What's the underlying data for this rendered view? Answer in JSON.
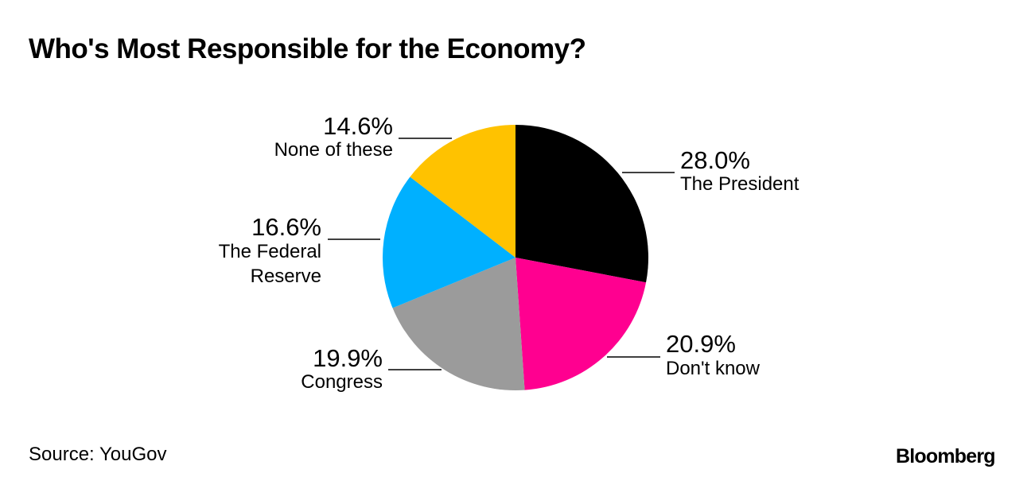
{
  "title": "Who's Most Responsible for the Economy?",
  "source": "Source: YouGov",
  "brand": "Bloomberg",
  "colors": {
    "the_president": "#000000",
    "dont_know": "#ff0090",
    "congress": "#9b9b9b",
    "federal_reserve": "#00b0ff",
    "none_of_these": "#ffc200"
  },
  "chart_data": {
    "type": "pie",
    "title": "Who's Most Responsible for the Economy?",
    "start": "12 o'clock",
    "direction": "clockwise",
    "slices": [
      {
        "label": "The President",
        "label_lines": [
          "The President"
        ],
        "value": 28.0,
        "display": "28.0%",
        "color": "#000000"
      },
      {
        "label": "Don't know",
        "label_lines": [
          "Don't know"
        ],
        "value": 20.9,
        "display": "20.9%",
        "color": "#ff0090"
      },
      {
        "label": "Congress",
        "label_lines": [
          "Congress"
        ],
        "value": 19.9,
        "display": "19.9%",
        "color": "#9b9b9b"
      },
      {
        "label": "The Federal Reserve",
        "label_lines": [
          "The Federal",
          "Reserve"
        ],
        "value": 16.6,
        "display": "16.6%",
        "color": "#00b0ff"
      },
      {
        "label": "None of these",
        "label_lines": [
          "None of these"
        ],
        "value": 14.6,
        "display": "14.6%",
        "color": "#ffc200"
      }
    ]
  }
}
